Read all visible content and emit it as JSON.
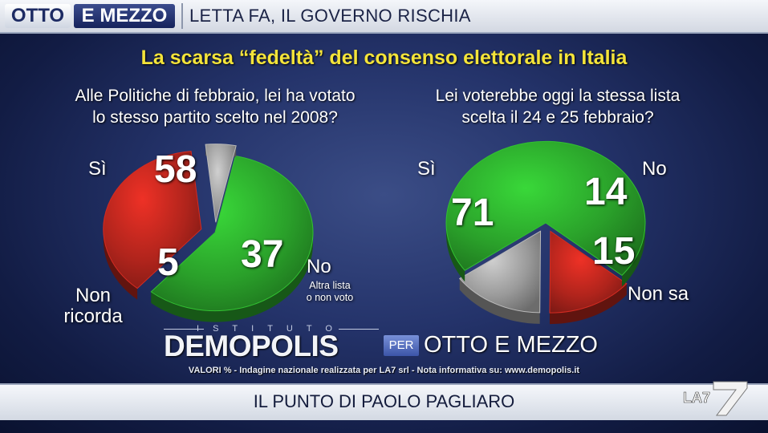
{
  "header": {
    "brand_left": "OTTO",
    "brand_right": "E MEZZO",
    "headline": "LETTA FA, IL GOVERNO RISCHIA"
  },
  "title": "La scarsa “fedeltà” del consenso elettorale in Italia",
  "colors": {
    "green": "#2aa02a",
    "red": "#b0241c",
    "gray": "#9a9a9a",
    "title": "#f4e43a"
  },
  "chart_data": [
    {
      "type": "pie",
      "title": "Alle Politiche di febbraio, lei ha votato lo stesso partito scelto nel 2008?",
      "title_lines": [
        "Alle Politiche di febbraio, lei ha votato",
        "lo stesso partito scelto nel 2008?"
      ],
      "unit": "%",
      "slices": [
        {
          "label": "Sì",
          "value": 58,
          "color": "#2aa02a"
        },
        {
          "label": "No",
          "sublabel": "Altra lista o non voto",
          "sublabel_lines": [
            "Altra lista",
            "o non voto"
          ],
          "value": 37,
          "color": "#b0241c"
        },
        {
          "label": "Non ricorda",
          "label_lines": [
            "Non",
            "ricorda"
          ],
          "value": 5,
          "color": "#9a9a9a"
        }
      ]
    },
    {
      "type": "pie",
      "title": "Lei voterebbe oggi la stessa lista scelta il 24 e 25 febbraio?",
      "title_lines": [
        "Lei voterebbe oggi la stessa lista",
        "scelta il 24 e 25 febbraio?"
      ],
      "unit": "%",
      "slices": [
        {
          "label": "Sì",
          "value": 71,
          "color": "#2aa02a"
        },
        {
          "label": "No",
          "value": 14,
          "color": "#b0241c"
        },
        {
          "label": "Non sa",
          "value": 15,
          "color": "#9a9a9a"
        }
      ]
    }
  ],
  "footer": {
    "institute": "ISTITUTO",
    "logo": "DEMOPOLIS",
    "per": "PER",
    "show": "OTTO E MEZZO",
    "note_prefix": "VALORI %",
    "note": " - Indagine nazionale realizzata per LA7 srl - Nota informativa su: www.demopolis.it",
    "bottom_title": "IL PUNTO DI PAOLO PAGLIARO",
    "channel": "LA7"
  }
}
